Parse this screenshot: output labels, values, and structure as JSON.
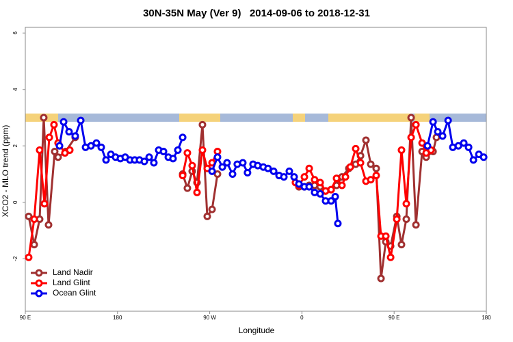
{
  "chart_data": {
    "type": "line",
    "title": "30N-35N May (Ver 9)   2014-09-06 to 2018-12-31",
    "x_label": "Longitude",
    "y_label": "XCO2 - MLO trend (ppm)",
    "xlim": [
      90,
      540
    ],
    "ylim": [
      -3.86,
      6.2
    ],
    "xticks": [
      {
        "value": 90,
        "label": "90 E"
      },
      180,
      {
        "value": 270,
        "label": "90 W"
      },
      {
        "value": 360,
        "label": "0"
      },
      {
        "value": 450,
        "label": "90 E"
      },
      {
        "value": 540,
        "label": "180"
      }
    ],
    "yticks": [
      -2,
      0,
      2,
      4,
      6
    ],
    "legend": "bottom-left",
    "series": [
      {
        "name": "Land Nadir",
        "color": "#a03030",
        "x": [
          93.3,
          98.7,
          104.0,
          108.0,
          112.7,
          118.7,
          122.0,
          129.4,
          138.7,
          null,
          243.6,
          248.2,
          252.9,
          257.6,
          262.9,
          267.6,
          272.3,
          277.6,
          null,
          357.1,
          362.4,
          367.1,
          372.4,
          377.8,
          383.1,
          388.5,
          393.8,
          399.1,
          405.8,
          412.5,
          417.2,
          422.5,
          427.2,
          432.5,
          437.2,
          441.9,
          446.6,
          452.6,
          457.2,
          461.9,
          466.6,
          471.3,
          477.3,
          481.3,
          488.0,
          491.3
        ],
        "values": [
          -0.5,
          -1.5,
          -0.6,
          3.0,
          -0.8,
          1.8,
          1.6,
          1.8,
          2.3,
          null,
          1.0,
          0.5,
          1.1,
          0.7,
          2.75,
          -0.5,
          -0.25,
          1.0,
          null,
          0.55,
          0.55,
          0.6,
          0.6,
          0.55,
          0.4,
          0.45,
          0.6,
          0.9,
          1.2,
          1.35,
          1.65,
          2.2,
          1.35,
          1.2,
          -2.7,
          -1.4,
          -1.55,
          -0.5,
          -1.5,
          -0.6,
          3.0,
          -0.8,
          1.8,
          1.6,
          1.8,
          2.3
        ]
      },
      {
        "name": "Land Glint",
        "color": "#ff0000",
        "x": [
          93.3,
          98.7,
          104.0,
          108.7,
          113.4,
          118.0,
          122.0,
          128.7,
          133.4,
          null,
          243.6,
          248.2,
          252.9,
          257.6,
          262.9,
          267.6,
          272.3,
          277.6,
          null,
          353.7,
          357.1,
          362.4,
          367.1,
          372.4,
          377.8,
          383.1,
          388.5,
          393.8,
          399.1,
          402.5,
          407.2,
          412.5,
          417.2,
          422.5,
          427.2,
          432.5,
          437.2,
          441.9,
          446.6,
          452.6,
          457.2,
          461.9,
          466.6,
          471.3,
          477.3,
          481.3,
          486.0
        ],
        "values": [
          -1.95,
          -0.6,
          1.85,
          -0.05,
          2.3,
          2.75,
          2.1,
          1.75,
          1.85,
          null,
          0.95,
          1.75,
          1.3,
          0.35,
          1.85,
          1.2,
          1.4,
          1.8,
          null,
          0.7,
          0.6,
          0.9,
          1.2,
          0.8,
          0.7,
          0.4,
          0.45,
          0.85,
          0.6,
          0.9,
          1.25,
          1.9,
          1.4,
          0.75,
          0.8,
          0.95,
          -1.2,
          -1.2,
          -1.95,
          -0.6,
          1.85,
          -0.05,
          2.3,
          2.75,
          2.1,
          1.75,
          1.85
        ]
      },
      {
        "name": "Ocean Glint",
        "color": "#0000ee",
        "x": [
          123.4,
          127.4,
          132.7,
          138.7,
          144.1,
          148.8,
          154.1,
          159.4,
          164.1,
          168.8,
          173.5,
          178.1,
          182.8,
          187.5,
          192.2,
          196.8,
          201.5,
          206.2,
          210.9,
          215.5,
          220.2,
          224.9,
          229.6,
          234.2,
          238.9,
          243.6,
          null,
          272.3,
          277.6,
          282.3,
          286.9,
          292.3,
          296.9,
          302.3,
          306.9,
          312.3,
          316.9,
          322.3,
          326.9,
          332.4,
          337.7,
          342.4,
          347.7,
          352.4,
          357.1,
          362.4,
          367.1,
          372.4,
          377.8,
          383.1,
          388.5,
          392.5,
          395.1,
          null,
          482.6,
          488.0,
          492.6,
          497.3,
          502.7,
          507.3,
          512.7,
          518.0,
          522.7,
          527.4,
          532.7,
          537.4
        ],
        "values": [
          2.0,
          2.85,
          2.5,
          2.35,
          2.9,
          1.95,
          2.0,
          2.1,
          1.95,
          1.5,
          1.7,
          1.6,
          1.55,
          1.6,
          1.5,
          1.5,
          1.5,
          1.45,
          1.6,
          1.4,
          1.85,
          1.8,
          1.6,
          1.55,
          1.85,
          2.3,
          null,
          1.1,
          1.6,
          1.25,
          1.4,
          1.0,
          1.35,
          1.4,
          1.05,
          1.35,
          1.3,
          1.25,
          1.2,
          1.1,
          0.95,
          0.9,
          1.1,
          0.9,
          0.65,
          0.55,
          0.55,
          0.35,
          0.3,
          0.05,
          0.05,
          0.2,
          -0.75,
          null,
          2.0,
          2.85,
          2.5,
          2.35,
          2.9,
          1.95,
          2.0,
          2.1,
          1.95,
          1.5,
          1.7,
          1.6
        ]
      }
    ]
  }
}
